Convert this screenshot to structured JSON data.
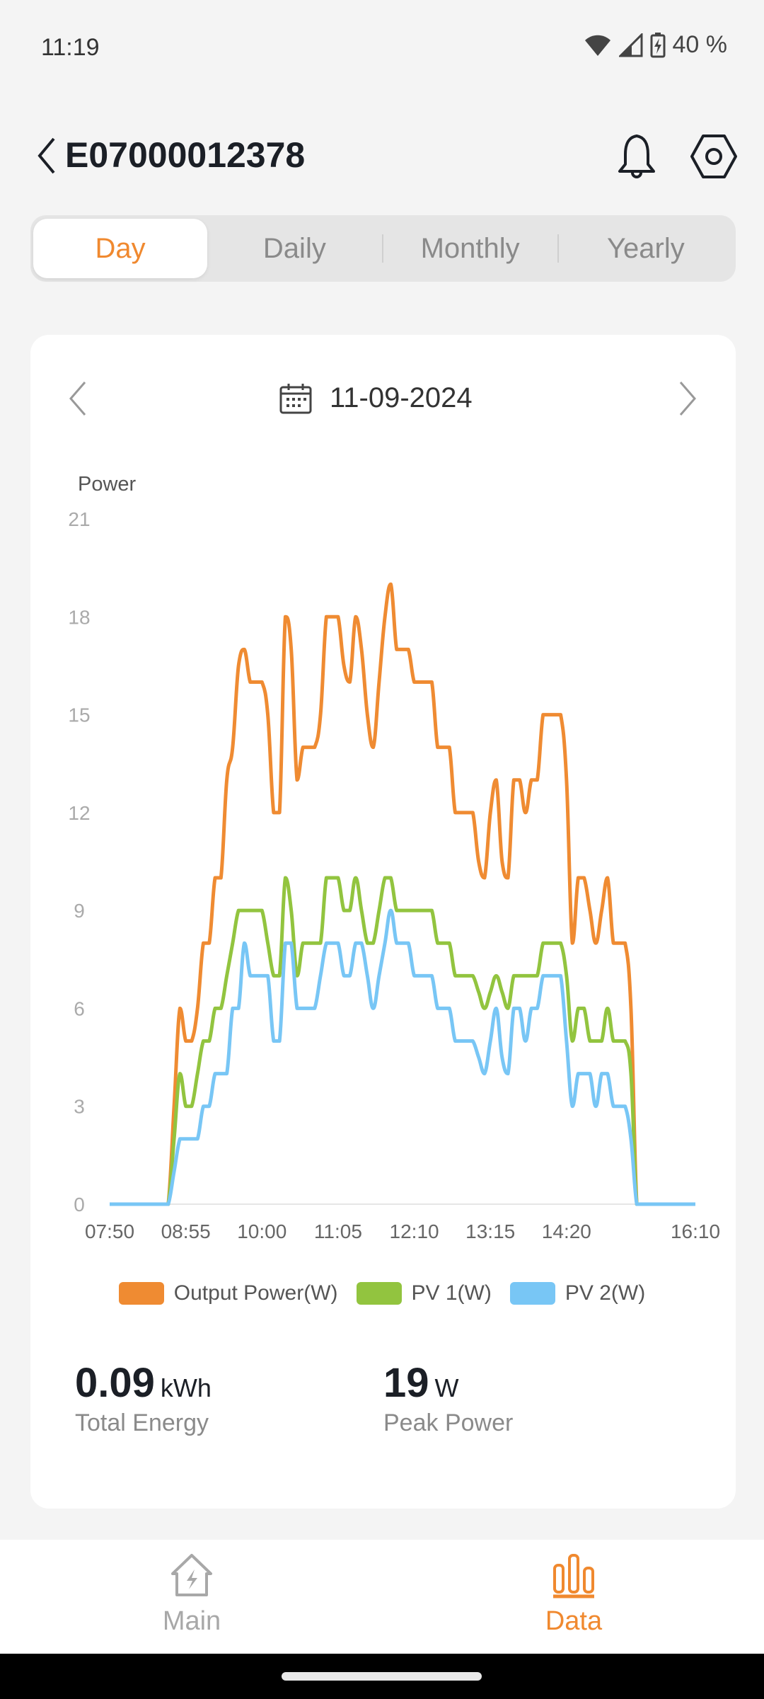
{
  "status_bar": {
    "time": "11:19",
    "battery": "40 %"
  },
  "header": {
    "title": "E07000012378"
  },
  "tabs": [
    {
      "label": "Day",
      "active": true
    },
    {
      "label": "Daily"
    },
    {
      "label": "Monthly"
    },
    {
      "label": "Yearly"
    }
  ],
  "date_nav": {
    "date": "11-09-2024"
  },
  "colors": {
    "accent": "#f0892f",
    "output": "#ef8b32",
    "pv1": "#92c43f",
    "pv2": "#78c6f5"
  },
  "chart_data": {
    "type": "line",
    "ylabel": "Power",
    "ylim": [
      0,
      21
    ],
    "yticks": [
      "0",
      "3",
      "6",
      "9",
      "12",
      "15",
      "18",
      "21"
    ],
    "x_start": "07:50",
    "x_end": "16:10",
    "x_step_minutes": 5,
    "xticks": [
      "07:50",
      "08:55",
      "10:00",
      "11:05",
      "12:10",
      "13:15",
      "14:20",
      "16:10"
    ],
    "series": [
      {
        "name": "Output Power(W)",
        "color": "#ef8b32",
        "values": [
          0,
          0,
          0,
          0,
          0,
          0,
          0,
          0,
          0,
          0,
          0,
          3,
          6,
          5,
          5,
          6,
          8,
          8,
          10,
          10,
          13,
          14,
          16.5,
          17,
          16,
          16,
          16,
          15,
          12,
          12,
          18,
          17,
          13,
          14,
          14,
          14,
          15,
          18,
          18,
          18,
          16.5,
          16,
          18,
          17,
          15,
          14,
          16,
          18,
          19,
          17,
          17,
          17,
          16,
          16,
          16,
          16,
          14,
          14,
          14,
          12,
          12,
          12,
          12,
          10.5,
          10,
          12,
          13,
          10.5,
          10,
          13,
          13,
          12,
          13,
          13,
          15,
          15,
          15,
          15,
          13,
          8,
          10,
          10,
          9,
          8,
          9,
          10,
          8,
          8,
          8,
          6,
          0,
          0,
          0,
          0,
          0,
          0,
          0,
          0,
          0,
          0,
          0
        ]
      },
      {
        "name": "PV 1(W)",
        "color": "#92c43f",
        "values": [
          0,
          0,
          0,
          0,
          0,
          0,
          0,
          0,
          0,
          0,
          0,
          2,
          4,
          3,
          3,
          4,
          5,
          5,
          6,
          6,
          7,
          8,
          9,
          9,
          9,
          9,
          9,
          8,
          7,
          7,
          10,
          9,
          7,
          8,
          8,
          8,
          8,
          10,
          10,
          10,
          9,
          9,
          10,
          9,
          8,
          8,
          9,
          10,
          10,
          9,
          9,
          9,
          9,
          9,
          9,
          9,
          8,
          8,
          8,
          7,
          7,
          7,
          7,
          6.5,
          6,
          6.5,
          7,
          6.5,
          6,
          7,
          7,
          7,
          7,
          7,
          8,
          8,
          8,
          8,
          7,
          5,
          6,
          6,
          5,
          5,
          5,
          6,
          5,
          5,
          5,
          4,
          0,
          0,
          0,
          0,
          0,
          0,
          0,
          0,
          0,
          0,
          0
        ]
      },
      {
        "name": "PV 2(W)",
        "color": "#78c6f5",
        "values": [
          0,
          0,
          0,
          0,
          0,
          0,
          0,
          0,
          0,
          0,
          0,
          1,
          2,
          2,
          2,
          2,
          3,
          3,
          4,
          4,
          4,
          6,
          6,
          8,
          7,
          7,
          7,
          7,
          5,
          5,
          8,
          8,
          6,
          6,
          6,
          6,
          7,
          8,
          8,
          8,
          7,
          7,
          8,
          8,
          7,
          6,
          7,
          8,
          9,
          8,
          8,
          8,
          7,
          7,
          7,
          7,
          6,
          6,
          6,
          5,
          5,
          5,
          5,
          4.5,
          4,
          5,
          6,
          4.5,
          4,
          6,
          6,
          5,
          6,
          6,
          7,
          7,
          7,
          7,
          5,
          3,
          4,
          4,
          4,
          3,
          4,
          4,
          3,
          3,
          3,
          2,
          0,
          0,
          0,
          0,
          0,
          0,
          0,
          0,
          0,
          0,
          0
        ]
      }
    ],
    "legend_position": "bottom-center"
  },
  "stats": [
    {
      "value": "0.09",
      "unit": "kWh",
      "label": "Total Energy"
    },
    {
      "value": "19",
      "unit": "W",
      "label": "Peak Power"
    }
  ],
  "nav": [
    {
      "label": "Main",
      "active": false
    },
    {
      "label": "Data",
      "active": true
    }
  ]
}
